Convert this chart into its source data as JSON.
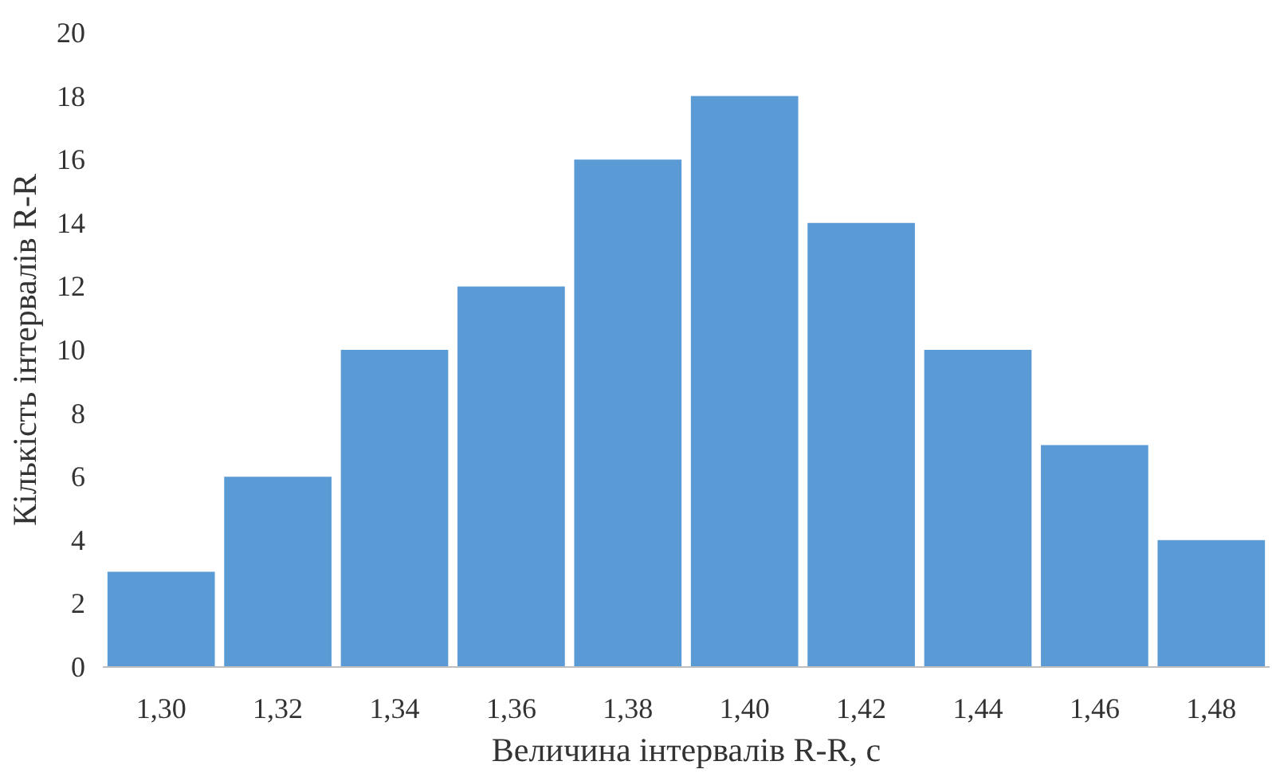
{
  "chart_data": {
    "type": "bar",
    "xlabel": "Величина інтервалів R-R, с",
    "ylabel": "Кількість інтервалів R-R",
    "categories": [
      "1,30",
      "1,32",
      "1,34",
      "1,36",
      "1,38",
      "1,40",
      "1,42",
      "1,44",
      "1,46",
      "1,48"
    ],
    "values": [
      3,
      6,
      10,
      12,
      16,
      18,
      14,
      10,
      7,
      4
    ],
    "color": "#5b9bd5",
    "ylim": [
      0,
      20
    ],
    "yticks": [
      0,
      2,
      4,
      6,
      8,
      10,
      12,
      14,
      16,
      18,
      20
    ],
    "grid": false
  }
}
